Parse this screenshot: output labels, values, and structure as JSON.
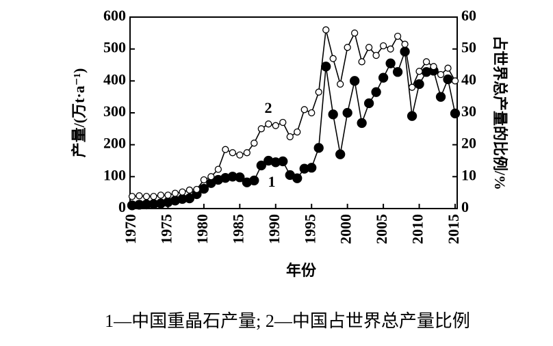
{
  "chart_data": {
    "type": "line",
    "x_label": "年份",
    "y_label": "产量/(万t·a⁻¹)",
    "y2_label": "占世界总产量的比例/%",
    "caption": "1—中国重晶石产量; 2—中国占世界总产量比例",
    "x": [
      1970,
      1971,
      1972,
      1973,
      1974,
      1975,
      1976,
      1977,
      1978,
      1979,
      1980,
      1981,
      1982,
      1983,
      1984,
      1985,
      1986,
      1987,
      1988,
      1989,
      1990,
      1991,
      1992,
      1993,
      1994,
      1995,
      1996,
      1997,
      1998,
      1999,
      2000,
      2001,
      2002,
      2003,
      2004,
      2005,
      2006,
      2007,
      2008,
      2009,
      2010,
      2011,
      2012,
      2013,
      2014,
      2015
    ],
    "series": [
      {
        "name": "1",
        "color": "#000000",
        "marker": "filled",
        "values": [
          10,
          12,
          13,
          14,
          16,
          20,
          25,
          30,
          32,
          45,
          62,
          80,
          90,
          96,
          100,
          98,
          82,
          88,
          135,
          150,
          145,
          148,
          105,
          95,
          125,
          128,
          190,
          445,
          295,
          170,
          300,
          400,
          268,
          330,
          365,
          410,
          455,
          428,
          492,
          290,
          390,
          428,
          432,
          350,
          405,
          298
        ]
      },
      {
        "name": "2",
        "color": "#000000",
        "marker": "open",
        "axis": "y2",
        "values": [
          3.8,
          4,
          3.8,
          3.8,
          4.2,
          4.2,
          4.8,
          5.2,
          5.8,
          6,
          9,
          10,
          12.3,
          18.5,
          17.5,
          16.8,
          17.5,
          20.5,
          25,
          26.5,
          26,
          27,
          22.5,
          24,
          31,
          30,
          36.5,
          56,
          47,
          39,
          50.5,
          55,
          46,
          50.5,
          48,
          51,
          50,
          54,
          51.5,
          38,
          43,
          46,
          44.5,
          42,
          44,
          40
        ]
      }
    ],
    "xlim": [
      1970,
      2015
    ],
    "xticks": [
      1970,
      1975,
      1980,
      1985,
      1990,
      1995,
      2000,
      2005,
      2010,
      2015
    ],
    "ylim": [
      0,
      600
    ],
    "yticks": [
      0,
      100,
      200,
      300,
      400,
      500,
      600
    ],
    "y2lim": [
      0,
      60
    ],
    "y2ticks": [
      0,
      10,
      20,
      30,
      40,
      50,
      60
    ]
  }
}
